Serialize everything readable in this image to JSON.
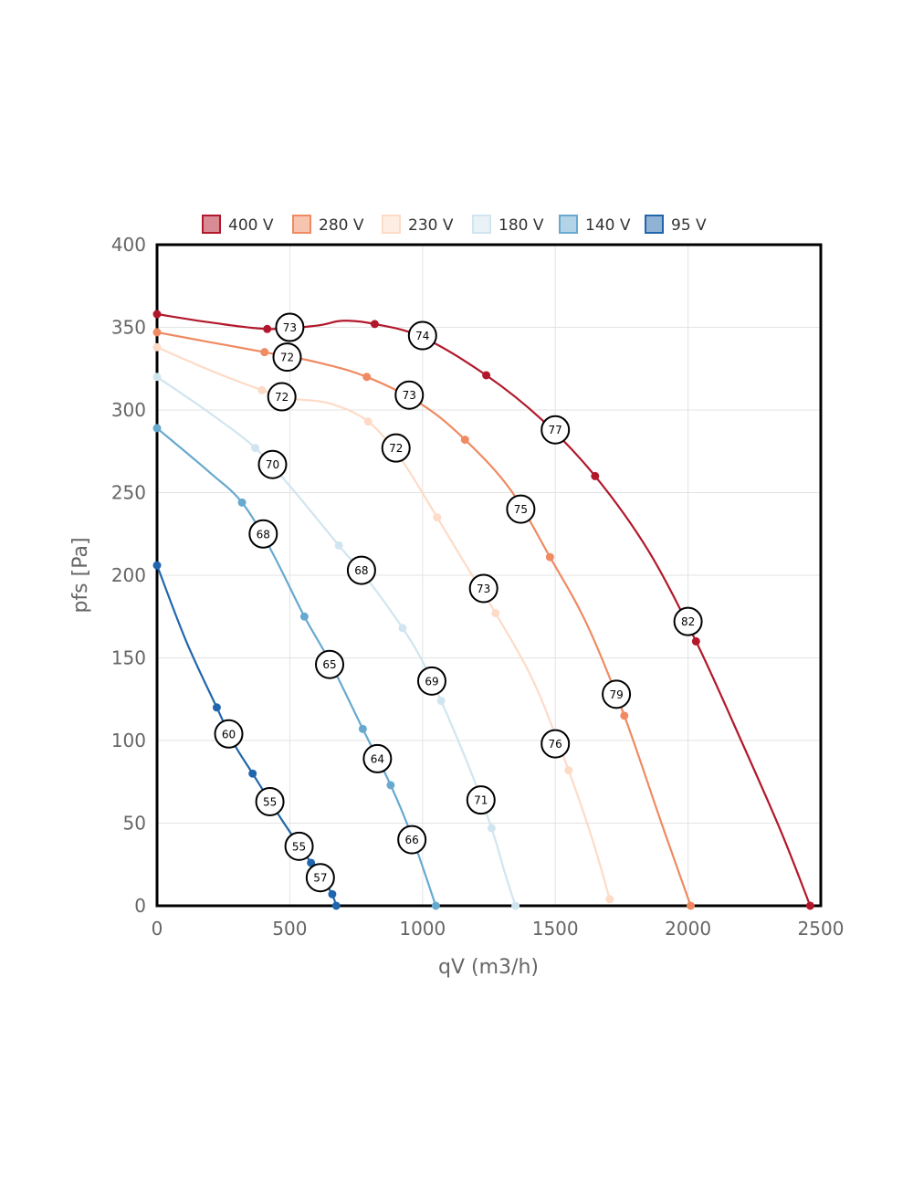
{
  "chart_data": {
    "type": "line",
    "title": "",
    "xlabel": "qV (m3/h)",
    "ylabel": "pfs [Pa]",
    "xlim": [
      0,
      2500
    ],
    "ylim": [
      0,
      400
    ],
    "x_ticks": [
      "0",
      "500",
      "1000",
      "1500",
      "2000",
      "2500"
    ],
    "y_ticks": [
      "0",
      "50",
      "100",
      "150",
      "200",
      "250",
      "300",
      "350",
      "400"
    ],
    "grid": true,
    "legend_position": "top",
    "series": [
      {
        "name": "400 V",
        "color": "#b2182b",
        "points": [
          [
            0,
            358
          ],
          [
            415,
            349
          ],
          [
            820,
            352
          ],
          [
            1240,
            321
          ],
          [
            1650,
            260
          ],
          [
            2030,
            160
          ],
          [
            2460,
            0
          ]
        ],
        "curve": [
          [
            0,
            358
          ],
          [
            200,
            353
          ],
          [
            415,
            349
          ],
          [
            600,
            351
          ],
          [
            700,
            354
          ],
          [
            820,
            352
          ],
          [
            1000,
            344
          ],
          [
            1240,
            321
          ],
          [
            1450,
            294
          ],
          [
            1650,
            260
          ],
          [
            1850,
            215
          ],
          [
            2030,
            160
          ],
          [
            2200,
            100
          ],
          [
            2350,
            45
          ],
          [
            2460,
            0
          ]
        ],
        "labels": [
          {
            "x": 500,
            "y": 350,
            "text": "73"
          },
          {
            "x": 1000,
            "y": 345,
            "text": "74"
          },
          {
            "x": 1500,
            "y": 288,
            "text": "77"
          },
          {
            "x": 2000,
            "y": 172,
            "text": "82"
          }
        ]
      },
      {
        "name": "280 V",
        "color": "#ef8a62",
        "points": [
          [
            0,
            347
          ],
          [
            405,
            335
          ],
          [
            790,
            320
          ],
          [
            1160,
            282
          ],
          [
            1480,
            211
          ],
          [
            1760,
            115
          ],
          [
            2010,
            0
          ]
        ],
        "curve": [
          [
            0,
            347
          ],
          [
            200,
            341
          ],
          [
            405,
            335
          ],
          [
            600,
            329
          ],
          [
            790,
            320
          ],
          [
            1000,
            303
          ],
          [
            1160,
            282
          ],
          [
            1330,
            252
          ],
          [
            1480,
            211
          ],
          [
            1620,
            170
          ],
          [
            1760,
            115
          ],
          [
            1900,
            50
          ],
          [
            2010,
            0
          ]
        ],
        "labels": [
          {
            "x": 490,
            "y": 332,
            "text": "72"
          },
          {
            "x": 950,
            "y": 309,
            "text": "73"
          },
          {
            "x": 1370,
            "y": 240,
            "text": "75"
          },
          {
            "x": 1730,
            "y": 128,
            "text": "79"
          }
        ]
      },
      {
        "name": "230 V",
        "color": "#fddbc7",
        "points": [
          [
            0,
            338
          ],
          [
            395,
            312
          ],
          [
            795,
            293
          ],
          [
            1055,
            235
          ],
          [
            1275,
            177
          ],
          [
            1550,
            82
          ],
          [
            1705,
            4
          ]
        ],
        "curve": [
          [
            0,
            338
          ],
          [
            200,
            324
          ],
          [
            395,
            312
          ],
          [
            500,
            307
          ],
          [
            650,
            304
          ],
          [
            795,
            293
          ],
          [
            920,
            270
          ],
          [
            1055,
            235
          ],
          [
            1160,
            207
          ],
          [
            1275,
            177
          ],
          [
            1420,
            135
          ],
          [
            1550,
            82
          ],
          [
            1640,
            40
          ],
          [
            1705,
            4
          ]
        ],
        "labels": [
          {
            "x": 470,
            "y": 308,
            "text": "72"
          },
          {
            "x": 900,
            "y": 277,
            "text": "72"
          },
          {
            "x": 1230,
            "y": 192,
            "text": "73"
          },
          {
            "x": 1500,
            "y": 98,
            "text": "76"
          }
        ]
      },
      {
        "name": "180 V",
        "color": "#d1e5f0",
        "points": [
          [
            0,
            320
          ],
          [
            370,
            277
          ],
          [
            685,
            218
          ],
          [
            925,
            168
          ],
          [
            1070,
            124
          ],
          [
            1260,
            47
          ],
          [
            1350,
            0
          ]
        ],
        "curve": [
          [
            0,
            320
          ],
          [
            200,
            298
          ],
          [
            370,
            277
          ],
          [
            500,
            254
          ],
          [
            685,
            218
          ],
          [
            800,
            196
          ],
          [
            925,
            168
          ],
          [
            1000,
            148
          ],
          [
            1070,
            124
          ],
          [
            1180,
            82
          ],
          [
            1260,
            47
          ],
          [
            1310,
            20
          ],
          [
            1350,
            0
          ]
        ],
        "labels": [
          {
            "x": 435,
            "y": 267,
            "text": "70"
          },
          {
            "x": 770,
            "y": 203,
            "text": "68"
          },
          {
            "x": 1035,
            "y": 136,
            "text": "69"
          },
          {
            "x": 1220,
            "y": 64,
            "text": "71"
          }
        ]
      },
      {
        "name": "140 V",
        "color": "#67a9cf",
        "points": [
          [
            0,
            289
          ],
          [
            320,
            244
          ],
          [
            555,
            175
          ],
          [
            775,
            107
          ],
          [
            880,
            73
          ],
          [
            1050,
            0
          ]
        ],
        "curve": [
          [
            0,
            289
          ],
          [
            200,
            262
          ],
          [
            320,
            244
          ],
          [
            430,
            215
          ],
          [
            555,
            175
          ],
          [
            650,
            148
          ],
          [
            775,
            107
          ],
          [
            880,
            73
          ],
          [
            960,
            42
          ],
          [
            1050,
            0
          ]
        ],
        "labels": [
          {
            "x": 400,
            "y": 225,
            "text": "68"
          },
          {
            "x": 650,
            "y": 146,
            "text": "65"
          },
          {
            "x": 830,
            "y": 89,
            "text": "64"
          },
          {
            "x": 960,
            "y": 40,
            "text": "66"
          }
        ]
      },
      {
        "name": "95 V",
        "color": "#2166ac",
        "points": [
          [
            0,
            206
          ],
          [
            225,
            120
          ],
          [
            360,
            80
          ],
          [
            580,
            26
          ],
          [
            660,
            7
          ],
          [
            675,
            0
          ]
        ],
        "curve": [
          [
            0,
            206
          ],
          [
            110,
            160
          ],
          [
            225,
            120
          ],
          [
            290,
            98
          ],
          [
            360,
            80
          ],
          [
            470,
            52
          ],
          [
            580,
            26
          ],
          [
            640,
            12
          ],
          [
            660,
            7
          ],
          [
            675,
            0
          ]
        ],
        "labels": [
          {
            "x": 270,
            "y": 104,
            "text": "60"
          },
          {
            "x": 425,
            "y": 63,
            "text": "55"
          },
          {
            "x": 535,
            "y": 36,
            "text": "55"
          },
          {
            "x": 615,
            "y": 17,
            "text": "57"
          }
        ]
      }
    ]
  }
}
